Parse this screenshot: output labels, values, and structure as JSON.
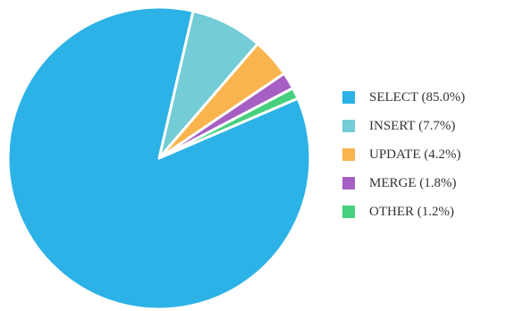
{
  "chart_data": {
    "type": "pie",
    "categories": [
      "SELECT",
      "INSERT",
      "UPDATE",
      "MERGE",
      "OTHER"
    ],
    "values": [
      85.0,
      7.7,
      4.2,
      1.8,
      1.2
    ],
    "colors": [
      "#2cb2e6",
      "#73ccd6",
      "#f9b44e",
      "#a65fc2",
      "#47d07f"
    ],
    "legend_labels": [
      "SELECT (85.0%)",
      "INSERT (7.7%)",
      "UPDATE (4.2%)",
      "MERGE (1.8%)",
      "OTHER (1.2%)"
    ],
    "legend_position": "right",
    "start_category": "INSERT",
    "direction": "clockwise",
    "grid": false
  }
}
